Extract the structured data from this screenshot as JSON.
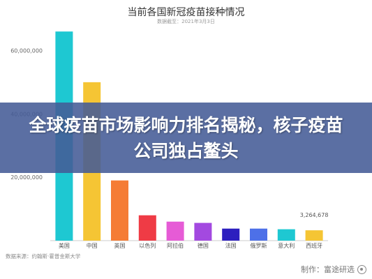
{
  "chart_data": {
    "type": "bar",
    "title": "当前各国新冠疫苗接种情况",
    "subtitle": "数据截至：2021年3月3日",
    "categories": [
      "美国",
      "中国",
      "英国",
      "以色列",
      "阿拉伯",
      "德国",
      "法国",
      "俄罗斯",
      "意大利",
      "西班牙"
    ],
    "values": [
      66000000,
      50000000,
      19000000,
      8000000,
      6000000,
      5600000,
      3800000,
      3800000,
      3600000,
      3264678
    ],
    "colors": [
      "#1ec8d2",
      "#f5c534",
      "#f57c35",
      "#ef3b45",
      "#e65bd6",
      "#a349e0",
      "#2c1fbf",
      "#4d70e8",
      "#1ec8d2",
      "#f5c534"
    ],
    "y_ticks": [
      "20,000,000",
      "40,000,000",
      "60,000,000"
    ],
    "ylim": [
      0,
      70000000
    ],
    "data_labels": [
      {
        "index": 9,
        "text": "3,264,678"
      }
    ],
    "grid": false,
    "legend": "none"
  },
  "banner": {
    "headline": "全球疫苗市场影响力排名揭秘，核子疫苗公司独占鳌头"
  },
  "source": "数据来源：约翰斯·霍普金斯大学",
  "watermark": {
    "text": "制作：富途研选",
    "icon": "futu-logo-icon"
  }
}
